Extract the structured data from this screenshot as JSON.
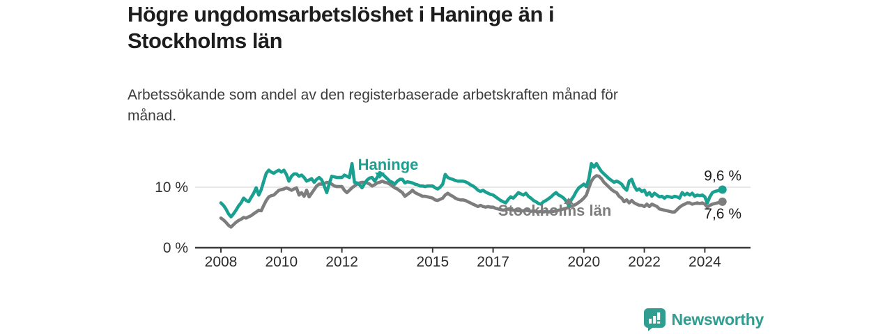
{
  "header": {
    "title": "Högre ungdomsarbetslöshet i Haninge än i Stockholms län",
    "subtitle": "Arbetssökande som andel av den registerbaserade arbetskraften månad för månad."
  },
  "footer": {
    "brand": "Newsworthy"
  },
  "colors": {
    "accent_teal": "#1aa091",
    "secondary_gray": "#7d7d7d",
    "axis": "#3a3a3a",
    "gridline": "#d9d9d9",
    "text_dark": "#1d1d1d"
  },
  "chart_data": {
    "type": "line",
    "unit": "%",
    "x_start_year": 2008,
    "points_per_year": 12,
    "x_ticks": [
      "2008",
      "2010",
      "2012",
      "2015",
      "2017",
      "2020",
      "2022",
      "2024"
    ],
    "x_tick_years": [
      2008,
      2010,
      2012,
      2015,
      2017,
      2020,
      2022,
      2024
    ],
    "y_ticks": [
      {
        "value": 0,
        "label": "0 %"
      },
      {
        "value": 10,
        "label": "10 %"
      }
    ],
    "ylim": [
      0,
      15
    ],
    "legend_position": "inline-annotations",
    "grid": "horizontal-only",
    "series": [
      {
        "name": "Haninge",
        "color": "#1aa091",
        "end_label": "9,6 %",
        "end_value": 9.6,
        "values": [
          7.4,
          7.0,
          6.4,
          5.6,
          5.1,
          5.6,
          6.2,
          6.9,
          7.4,
          8.2,
          7.8,
          7.6,
          8.3,
          9.0,
          9.9,
          8.7,
          9.6,
          11.0,
          12.3,
          12.8,
          12.5,
          12.3,
          12.6,
          12.8,
          12.5,
          12.8,
          12.1,
          11.0,
          11.8,
          12.2,
          12.2,
          11.8,
          12.0,
          11.6,
          11.0,
          11.2,
          11.4,
          10.8,
          11.3,
          11.6,
          11.2,
          10.2,
          9.1,
          10.6,
          11.8,
          11.7,
          11.6,
          11.6,
          11.6,
          12.0,
          11.8,
          11.6,
          13.9,
          10.8,
          10.7,
          10.4,
          9.9,
          10.6,
          11.2,
          11.5,
          11.6,
          11.0,
          11.6,
          12.4,
          12.2,
          11.8,
          11.4,
          11.0,
          10.8,
          10.5,
          11.0,
          11.3,
          11.3,
          10.7,
          10.9,
          10.8,
          10.7,
          10.5,
          10.4,
          10.2,
          10.2,
          10.1,
          10.2,
          10.2,
          10.2,
          9.9,
          9.7,
          10.0,
          10.5,
          12.1,
          11.6,
          11.4,
          11.3,
          11.1,
          11.0,
          11.0,
          11.0,
          10.9,
          10.7,
          10.4,
          10.2,
          9.9,
          9.5,
          9.3,
          9.5,
          9.2,
          9.0,
          8.8,
          8.7,
          8.4,
          8.1,
          7.8,
          7.6,
          7.4,
          8.0,
          8.4,
          8.2,
          8.6,
          9.1,
          8.9,
          8.7,
          9.0,
          8.5,
          8.2,
          7.8,
          7.6,
          7.3,
          7.2,
          7.6,
          7.8,
          8.1,
          8.4,
          8.8,
          9.1,
          8.7,
          8.5,
          8.2,
          7.7,
          7.0,
          7.9,
          8.5,
          9.3,
          9.9,
          10.2,
          10.5,
          10.1,
          11.4,
          13.9,
          13.3,
          13.9,
          13.2,
          12.6,
          12.2,
          11.8,
          11.4,
          11.1,
          10.8,
          11.0,
          10.8,
          10.5,
          9.9,
          9.5,
          11.0,
          11.3,
          10.2,
          9.5,
          9.7,
          9.3,
          9.5,
          8.7,
          9.1,
          8.5,
          9.0,
          8.7,
          8.4,
          8.5,
          8.2,
          8.5,
          8.4,
          8.3,
          8.5,
          8.4,
          8.2,
          9.1,
          8.7,
          9.0,
          8.7,
          9.0,
          8.5,
          8.7,
          8.6,
          8.7,
          8.4,
          7.4,
          8.4,
          9.1,
          9.3,
          9.4,
          9.5,
          9.6
        ]
      },
      {
        "name": "Stockholms län",
        "color": "#7d7d7d",
        "end_label": "7,6 %",
        "end_value": 7.6,
        "values": [
          4.9,
          4.6,
          4.2,
          3.7,
          3.4,
          3.8,
          4.2,
          4.5,
          4.7,
          5.0,
          4.9,
          5.1,
          5.3,
          5.6,
          5.9,
          6.2,
          6.1,
          7.0,
          7.8,
          8.4,
          8.6,
          8.7,
          9.1,
          9.5,
          9.6,
          9.7,
          9.9,
          9.7,
          9.5,
          9.7,
          9.9,
          8.7,
          9.1,
          8.5,
          9.5,
          8.4,
          9.0,
          9.6,
          10.2,
          10.5,
          10.5,
          10.6,
          10.8,
          10.7,
          10.5,
          10.2,
          10.1,
          10.1,
          10.1,
          9.5,
          9.1,
          9.5,
          9.9,
          10.2,
          10.5,
          10.7,
          10.8,
          10.8,
          10.7,
          10.5,
          10.2,
          10.4,
          10.7,
          10.8,
          11.0,
          10.8,
          10.7,
          10.5,
          10.2,
          9.9,
          9.7,
          9.4,
          9.1,
          8.5,
          8.8,
          9.1,
          9.5,
          9.1,
          8.9,
          8.7,
          8.5,
          8.5,
          8.4,
          8.3,
          8.2,
          7.9,
          7.8,
          8.0,
          8.2,
          8.7,
          9.0,
          8.7,
          8.5,
          8.2,
          8.0,
          7.9,
          7.9,
          7.8,
          7.6,
          7.4,
          7.2,
          7.0,
          6.8,
          7.0,
          6.8,
          6.7,
          6.8,
          6.7,
          6.7,
          6.5,
          6.4,
          6.3,
          6.2,
          6.3,
          6.4,
          6.3,
          6.2,
          6.2,
          6.1,
          6.1,
          6.1,
          6.2,
          6.1,
          6.0,
          6.1,
          6.0,
          5.9,
          6.0,
          5.9,
          6.0,
          5.9,
          6.0,
          6.0,
          6.1,
          6.2,
          6.3,
          6.4,
          6.5,
          6.7,
          6.9,
          7.0,
          7.2,
          7.5,
          7.8,
          8.2,
          8.7,
          9.9,
          11.0,
          11.6,
          11.9,
          11.8,
          11.4,
          10.8,
          10.4,
          10.0,
          9.6,
          9.3,
          9.1,
          8.5,
          8.2,
          7.6,
          7.9,
          7.4,
          7.8,
          7.4,
          7.2,
          7.0,
          7.0,
          6.8,
          7.2,
          6.8,
          7.2,
          7.0,
          6.8,
          6.4,
          6.3,
          6.2,
          6.1,
          6.0,
          5.9,
          5.9,
          6.3,
          6.7,
          7.0,
          7.2,
          7.4,
          7.4,
          7.2,
          7.3,
          7.4,
          7.3,
          7.4,
          7.2,
          6.7,
          7.0,
          7.2,
          7.3,
          7.4,
          7.5,
          7.6
        ]
      }
    ]
  }
}
